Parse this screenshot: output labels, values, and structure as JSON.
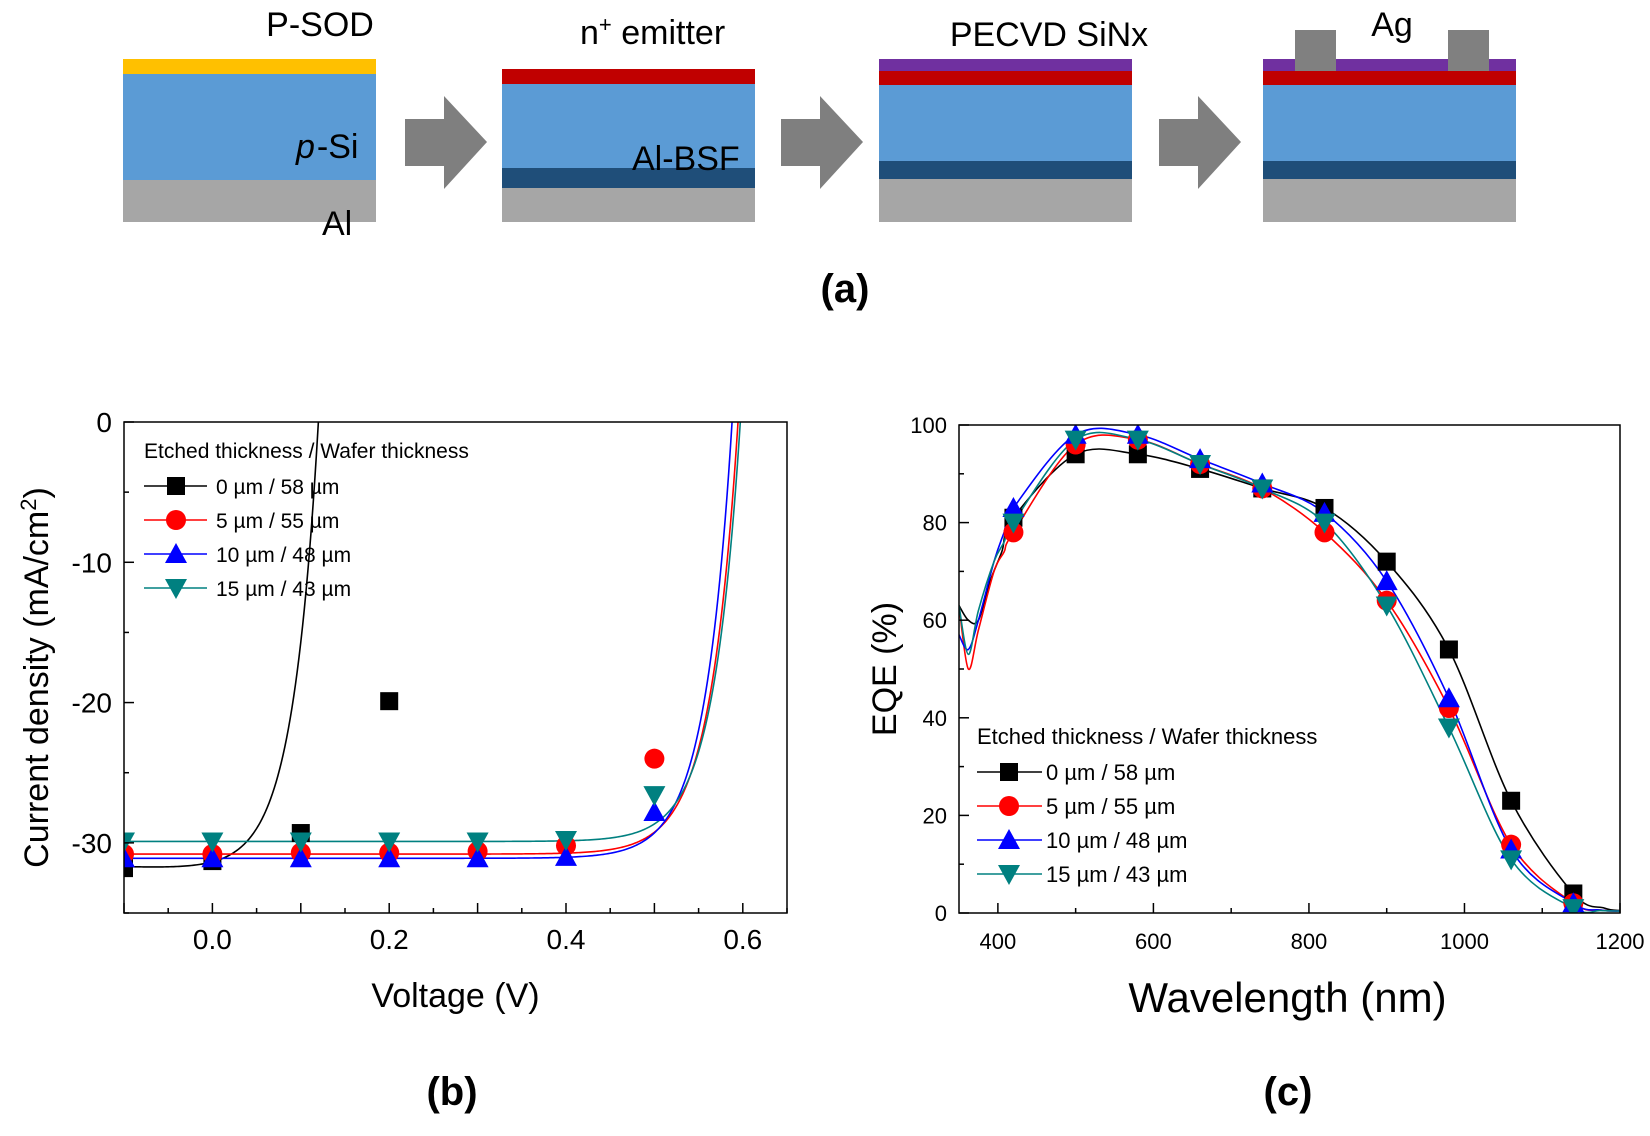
{
  "panel_a": {
    "label": "(a)",
    "steps": [
      {
        "top_label": "P-SOD",
        "mid_label_prefix": "p",
        "mid_label_suffix": "-Si",
        "bottom_label": "Al"
      },
      {
        "top_label": "n",
        "top_label_sup": "+",
        "top_label_rest": " emitter",
        "mid_label": "Al-BSF"
      },
      {
        "top_label": "PECVD SiNx"
      },
      {
        "top_label": "Ag"
      }
    ],
    "colors": {
      "sod": "#ffc000",
      "si": "#5b9bd5",
      "al": "#a6a6a6",
      "emitter": "#c00000",
      "bsf": "#1f4e79",
      "sinx": "#7030a0",
      "ag": "#808080",
      "arrow": "#7f7f7f"
    }
  },
  "panel_b": {
    "label": "(b)",
    "legend_title": "Etched thickness / Wafer thickness",
    "ylabel_main": "Current density (mA/cm",
    "ylabel_sup": "2",
    "ylabel_end": ")"
  },
  "panel_c": {
    "label": "(c)",
    "legend_title": "Etched thickness / Wafer thickness"
  },
  "chart_data": [
    {
      "type": "line",
      "xlabel": "Voltage (V)",
      "ylabel": "Current density (mA/cm2)",
      "xlim": [
        -0.1,
        0.65
      ],
      "ylim": [
        -35,
        0
      ],
      "xticks": [
        "0.0",
        "0.2",
        "0.4",
        "0.6"
      ],
      "xtick_values": [
        0.0,
        0.2,
        0.4,
        0.6
      ],
      "yticks": [
        "-30",
        "-20",
        "-10",
        "0"
      ],
      "ytick_values": [
        -30,
        -20,
        -10,
        0
      ],
      "legend_position": "top-left",
      "series": [
        {
          "name": "0 µm / 58 µm",
          "color": "#000000",
          "marker": "square",
          "x": [
            -0.1,
            0.0,
            0.1,
            0.2
          ],
          "y": [
            -31.8,
            -31.3,
            -29.3,
            -19.9
          ]
        },
        {
          "name": "5 µm / 55 µm",
          "color": "#ff0000",
          "marker": "circle",
          "x": [
            -0.1,
            0.0,
            0.1,
            0.2,
            0.3,
            0.4,
            0.5
          ],
          "y": [
            -30.8,
            -30.8,
            -30.7,
            -30.7,
            -30.6,
            -30.2,
            -24.0
          ]
        },
        {
          "name": "10 µm / 48 µm",
          "color": "#0000ff",
          "marker": "triangle-up",
          "x": [
            -0.1,
            0.0,
            0.1,
            0.2,
            0.3,
            0.4,
            0.5
          ],
          "y": [
            -31.1,
            -31.1,
            -31.1,
            -31.1,
            -31.1,
            -31.0,
            -27.8
          ]
        },
        {
          "name": "15 µm / 43 µm",
          "color": "#008080",
          "marker": "triangle-down",
          "x": [
            -0.1,
            0.0,
            0.1,
            0.2,
            0.3,
            0.4,
            0.5
          ],
          "y": [
            -29.9,
            -29.9,
            -29.9,
            -29.9,
            -29.9,
            -29.8,
            -26.6
          ]
        }
      ]
    },
    {
      "type": "line",
      "xlabel": "Wavelength (nm)",
      "ylabel": "EQE (%)",
      "xlim": [
        350,
        1200
      ],
      "ylim": [
        0,
        100
      ],
      "xticks": [
        "400",
        "600",
        "800",
        "1000",
        "1200"
      ],
      "xtick_values": [
        400,
        600,
        800,
        1000,
        1200
      ],
      "yticks": [
        "0",
        "20",
        "40",
        "60",
        "80",
        "100"
      ],
      "ytick_values": [
        0,
        20,
        40,
        60,
        80,
        100
      ],
      "legend_position": "bottom-left",
      "series": [
        {
          "name": "0 µm / 58 µm",
          "color": "#000000",
          "marker": "square",
          "x": [
            420,
            500,
            580,
            660,
            740,
            820,
            900,
            980,
            1060,
            1140
          ],
          "y": [
            81,
            94,
            94,
            91,
            87,
            83,
            72,
            54,
            23,
            4
          ]
        },
        {
          "name": "5 µm / 55 µm",
          "color": "#ff0000",
          "marker": "circle",
          "x": [
            420,
            500,
            580,
            660,
            740,
            820,
            900,
            980,
            1060,
            1140
          ],
          "y": [
            78,
            96,
            97,
            92,
            87,
            78,
            64,
            42,
            14,
            2
          ]
        },
        {
          "name": "10 µm / 48 µm",
          "color": "#0000ff",
          "marker": "triangle-up",
          "x": [
            420,
            500,
            580,
            660,
            740,
            820,
            900,
            980,
            1060,
            1140
          ],
          "y": [
            83,
            98,
            98,
            93,
            88,
            82,
            68,
            44,
            13,
            2
          ]
        },
        {
          "name": "15 µm / 43 µm",
          "color": "#008080",
          "marker": "triangle-down",
          "x": [
            420,
            500,
            580,
            660,
            740,
            820,
            900,
            980,
            1060,
            1140
          ],
          "y": [
            80,
            97,
            97,
            92,
            87,
            80,
            63,
            38,
            11,
            1
          ]
        }
      ]
    }
  ]
}
